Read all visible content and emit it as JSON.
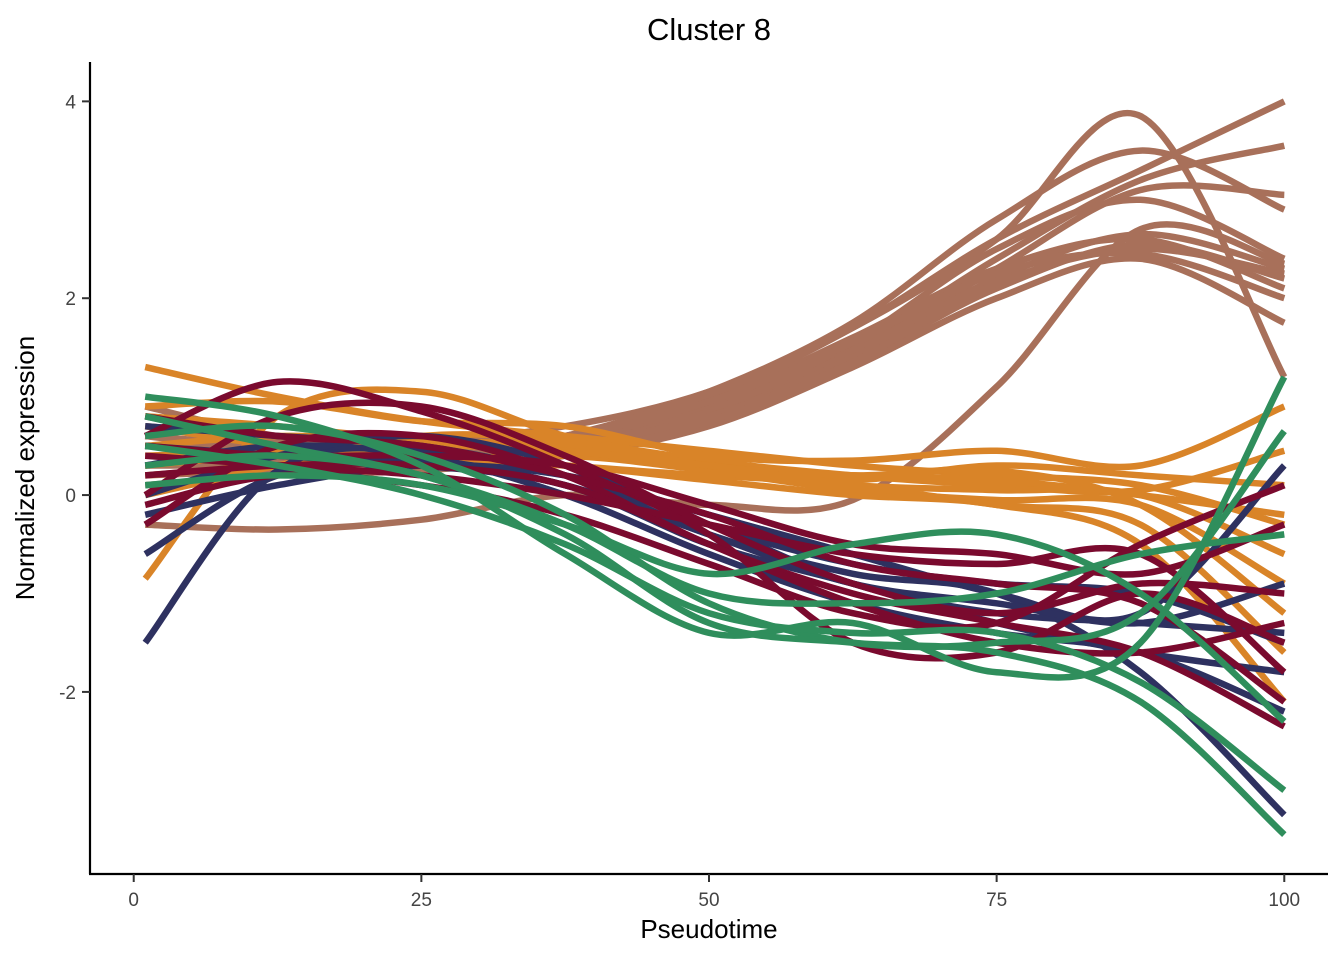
{
  "chart_data": {
    "type": "line",
    "title": "Cluster 8",
    "xlabel": "Pseudotime",
    "ylabel": "Normalized expression",
    "xlim": [
      -3.8,
      103.8
    ],
    "ylim": [
      -3.85,
      4.4
    ],
    "xticks": [
      0,
      25,
      50,
      75,
      100
    ],
    "yticks": [
      -2,
      0,
      2,
      4
    ],
    "ytick_labels": [
      "-2",
      "0",
      "2",
      "4"
    ],
    "grid": false,
    "legend": "none",
    "x": [
      1,
      12.5,
      25,
      37.5,
      50,
      62.5,
      75,
      87.5,
      100
    ],
    "series": [
      {
        "color": "#a8705a",
        "values": [
          0.7,
          0.6,
          0.55,
          0.7,
          1.05,
          1.7,
          2.6,
          3.85,
          1.2
        ]
      },
      {
        "color": "#a8705a",
        "values": [
          0.3,
          0.35,
          0.4,
          0.6,
          1.05,
          1.75,
          2.8,
          3.5,
          2.9
        ]
      },
      {
        "color": "#a8705a",
        "values": [
          0.5,
          0.45,
          0.45,
          0.6,
          1.0,
          1.7,
          2.6,
          3.3,
          4.0
        ]
      },
      {
        "color": "#a8705a",
        "values": [
          0.6,
          0.5,
          0.45,
          0.55,
          0.9,
          1.5,
          2.4,
          3.2,
          3.55
        ]
      },
      {
        "color": "#a8705a",
        "values": [
          0.4,
          0.4,
          0.4,
          0.5,
          0.85,
          1.45,
          2.3,
          3.1,
          3.05
        ]
      },
      {
        "color": "#a8705a",
        "values": [
          0.2,
          0.25,
          0.3,
          0.45,
          0.85,
          1.55,
          2.5,
          3.0,
          2.4
        ]
      },
      {
        "color": "#a8705a",
        "values": [
          0.5,
          0.4,
          0.35,
          0.45,
          0.8,
          1.4,
          2.2,
          2.65,
          2.3
        ]
      },
      {
        "color": "#a8705a",
        "values": [
          0.6,
          0.45,
          0.4,
          0.5,
          0.8,
          1.35,
          2.1,
          2.55,
          2.2
        ]
      },
      {
        "color": "#a8705a",
        "values": [
          0.3,
          0.3,
          0.3,
          0.4,
          0.7,
          1.3,
          2.0,
          2.4,
          1.75
        ]
      },
      {
        "color": "#a8705a",
        "values": [
          0.8,
          0.55,
          0.45,
          0.55,
          0.95,
          1.6,
          2.3,
          2.6,
          2.1
        ]
      },
      {
        "color": "#a8705a",
        "values": [
          0.1,
          0.2,
          0.25,
          0.4,
          0.75,
          1.35,
          2.15,
          2.5,
          2.25
        ]
      },
      {
        "color": "#a8705a",
        "values": [
          -0.3,
          -0.35,
          -0.25,
          0.0,
          -0.1,
          -0.05,
          1.1,
          2.7,
          2.35
        ]
      },
      {
        "color": "#a8705a",
        "values": [
          0.9,
          0.6,
          0.5,
          0.6,
          0.95,
          1.55,
          2.25,
          2.45,
          2.0
        ]
      },
      {
        "color": "#d98428",
        "values": [
          1.3,
          1.0,
          0.75,
          0.6,
          0.45,
          0.3,
          0.2,
          0.1,
          -0.3
        ]
      },
      {
        "color": "#d98428",
        "values": [
          0.9,
          0.95,
          0.75,
          0.7,
          0.4,
          0.35,
          0.45,
          0.3,
          0.9
        ]
      },
      {
        "color": "#d98428",
        "values": [
          -0.85,
          0.8,
          1.05,
          0.6,
          0.35,
          0.2,
          0.1,
          0.05,
          0.45
        ]
      },
      {
        "color": "#d98428",
        "values": [
          0.5,
          0.6,
          0.55,
          0.5,
          0.3,
          0.2,
          0.15,
          0.0,
          -0.2
        ]
      },
      {
        "color": "#d98428",
        "values": [
          0.2,
          0.3,
          0.35,
          0.4,
          0.25,
          0.1,
          0.05,
          0.0,
          -0.6
        ]
      },
      {
        "color": "#d98428",
        "values": [
          0.7,
          0.5,
          0.4,
          0.3,
          0.2,
          0.15,
          0.3,
          0.2,
          0.1
        ]
      },
      {
        "color": "#d98428",
        "values": [
          0.4,
          0.45,
          0.5,
          0.45,
          0.25,
          0.05,
          -0.05,
          -0.1,
          -0.9
        ]
      },
      {
        "color": "#d98428",
        "values": [
          0.0,
          0.3,
          0.6,
          0.55,
          0.3,
          0.2,
          0.25,
          -0.1,
          -1.2
        ]
      },
      {
        "color": "#d98428",
        "values": [
          0.3,
          0.4,
          0.35,
          0.3,
          0.15,
          0.0,
          -0.1,
          -0.5,
          -2.1
        ]
      },
      {
        "color": "#d98428",
        "values": [
          0.8,
          0.7,
          0.55,
          0.45,
          0.3,
          0.1,
          -0.1,
          -0.3,
          -1.6
        ]
      },
      {
        "color": "#2e3160",
        "values": [
          -1.5,
          0.25,
          0.45,
          0.2,
          -0.4,
          -0.8,
          -1.0,
          -1.8,
          -3.25
        ]
      },
      {
        "color": "#2e3160",
        "values": [
          0.7,
          0.6,
          0.5,
          0.2,
          -0.3,
          -0.9,
          -1.2,
          -1.3,
          -1.4
        ]
      },
      {
        "color": "#2e3160",
        "values": [
          0.5,
          0.4,
          0.3,
          0.1,
          -0.5,
          -0.9,
          -1.3,
          -1.6,
          -1.8
        ]
      },
      {
        "color": "#2e3160",
        "values": [
          -0.2,
          0.1,
          0.3,
          0.2,
          -0.2,
          -0.6,
          -1.0,
          -1.2,
          0.3
        ]
      },
      {
        "color": "#2e3160",
        "values": [
          0.3,
          0.5,
          0.4,
          0.0,
          -0.6,
          -1.1,
          -1.4,
          -1.6,
          -2.2
        ]
      },
      {
        "color": "#2e3160",
        "values": [
          -0.6,
          0.2,
          0.35,
          0.1,
          -0.4,
          -0.9,
          -1.1,
          -1.3,
          -0.9
        ]
      },
      {
        "color": "#2e3160",
        "values": [
          0.0,
          0.4,
          0.6,
          0.3,
          -0.3,
          -0.7,
          -0.9,
          -1.0,
          -1.5
        ]
      },
      {
        "color": "#7a0a2e",
        "values": [
          0.6,
          1.15,
          0.85,
          0.3,
          -0.4,
          -1.5,
          -1.6,
          -1.0,
          -1.5
        ]
      },
      {
        "color": "#7a0a2e",
        "values": [
          0.0,
          0.8,
          0.9,
          0.4,
          -0.3,
          -0.9,
          -1.2,
          -0.9,
          -1.0
        ]
      },
      {
        "color": "#7a0a2e",
        "values": [
          -0.3,
          0.5,
          0.6,
          0.2,
          -0.5,
          -1.0,
          -1.3,
          -1.6,
          -2.35
        ]
      },
      {
        "color": "#7a0a2e",
        "values": [
          0.4,
          0.3,
          0.2,
          0.0,
          -0.3,
          -0.6,
          -0.7,
          -0.6,
          -1.8
        ]
      },
      {
        "color": "#7a0a2e",
        "values": [
          0.2,
          0.3,
          0.3,
          0.1,
          -0.5,
          -1.1,
          -1.5,
          -1.6,
          -1.3
        ]
      },
      {
        "color": "#7a0a2e",
        "values": [
          0.8,
          0.6,
          0.5,
          0.2,
          -0.2,
          -0.7,
          -0.9,
          -1.1,
          -2.1
        ]
      },
      {
        "color": "#7a0a2e",
        "values": [
          -0.1,
          0.2,
          0.1,
          -0.2,
          -0.7,
          -1.2,
          -1.3,
          -0.5,
          0.1
        ]
      },
      {
        "color": "#7a0a2e",
        "values": [
          0.5,
          0.4,
          0.4,
          0.3,
          -0.1,
          -0.5,
          -0.6,
          -0.8,
          -0.3
        ]
      },
      {
        "color": "#2f8e5c",
        "values": [
          1.0,
          0.8,
          0.3,
          -0.6,
          -1.4,
          -1.3,
          -1.8,
          -1.5,
          1.2
        ]
      },
      {
        "color": "#2f8e5c",
        "values": [
          0.6,
          0.7,
          0.4,
          -0.2,
          -1.1,
          -1.5,
          -1.5,
          -1.2,
          0.65
        ]
      },
      {
        "color": "#2f8e5c",
        "values": [
          0.3,
          0.4,
          0.2,
          -0.4,
          -1.3,
          -1.5,
          -1.6,
          -2.1,
          -3.45
        ]
      },
      {
        "color": "#2f8e5c",
        "values": [
          0.5,
          0.3,
          0.0,
          -0.5,
          -1.2,
          -1.4,
          -1.4,
          -1.9,
          -3.0
        ]
      },
      {
        "color": "#2f8e5c",
        "values": [
          0.1,
          0.2,
          0.1,
          -0.3,
          -0.8,
          -0.5,
          -0.4,
          -1.0,
          -2.3
        ]
      },
      {
        "color": "#2f8e5c",
        "values": [
          0.8,
          0.5,
          0.2,
          -0.3,
          -1.0,
          -1.1,
          -1.0,
          -0.6,
          -0.4
        ]
      }
    ]
  }
}
